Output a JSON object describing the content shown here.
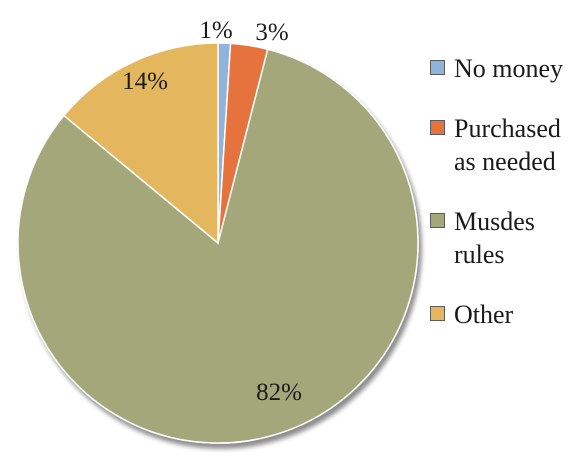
{
  "chart_data": {
    "type": "pie",
    "slices": [
      {
        "label": "No money",
        "value": 1,
        "display": "1%",
        "color": "#8fb3da"
      },
      {
        "label": "Purchased as needed",
        "display_label": [
          "Purchased",
          "as needed"
        ],
        "value": 3,
        "display": "3%",
        "color": "#e6733e"
      },
      {
        "label": "Musdes rules",
        "display_label": [
          "Musdes",
          "rules"
        ],
        "value": 82,
        "display": "82%",
        "color": "#a3a77a"
      },
      {
        "label": "Other",
        "value": 14,
        "display": "14%",
        "color": "#e4b75f"
      }
    ],
    "start_angle_deg": 0,
    "direction": "clockwise",
    "legend_position": "right"
  },
  "legend": {
    "items": [
      {
        "name": "No money"
      },
      {
        "name": "Purchased as needed"
      },
      {
        "name": "Musdes rules"
      },
      {
        "name": "Other"
      }
    ]
  }
}
